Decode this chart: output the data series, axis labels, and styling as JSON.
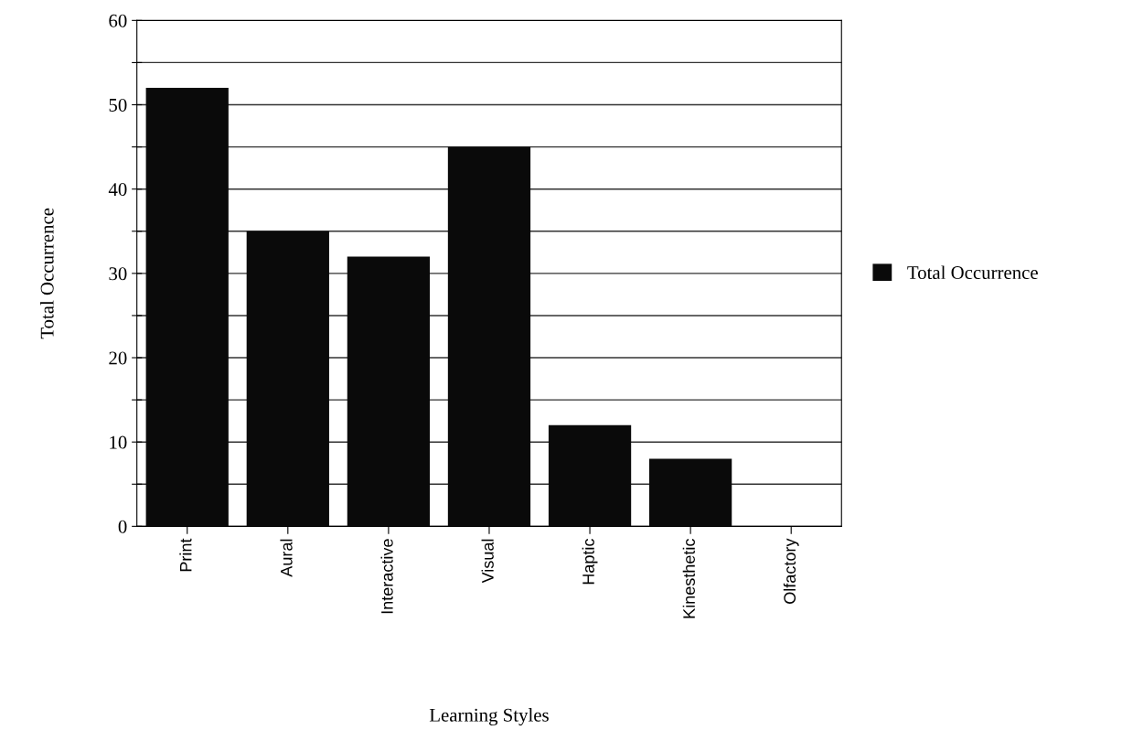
{
  "chart_data": {
    "type": "bar",
    "xlabel": "Learning Styles",
    "ylabel": "Total Occurrence",
    "categories": [
      "Print",
      "Aural",
      "Interactive",
      "Visual",
      "Haptic",
      "Kinesthetic",
      "Olfactory"
    ],
    "series": [
      {
        "name": "Total Occurrence",
        "color": "#0a0a0a",
        "values": [
          52,
          35,
          32,
          45,
          12,
          8,
          0
        ]
      }
    ],
    "ylim": [
      0,
      60
    ],
    "yticks": [
      0,
      {
        "value": 5,
        "label": null
      },
      10,
      {
        "value": 15,
        "label": null
      },
      20,
      {
        "value": 25,
        "label": null
      },
      30,
      {
        "value": 35,
        "label": null
      },
      40,
      {
        "value": 45,
        "label": null
      },
      50,
      {
        "value": 55,
        "label": null
      },
      60
    ],
    "grid": "y",
    "legend": "right"
  }
}
